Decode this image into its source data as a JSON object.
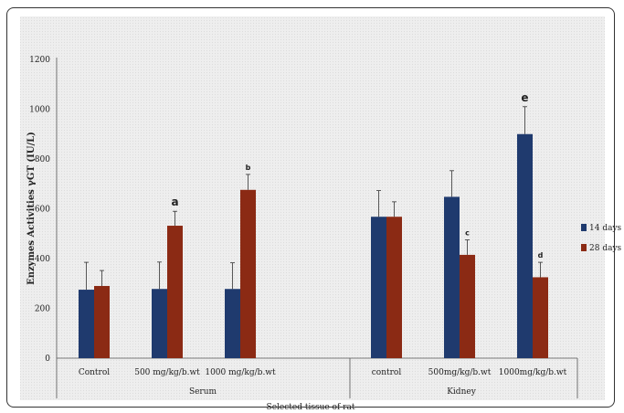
{
  "chart_data": {
    "type": "bar",
    "ylabel": "Enzymes Activities γGT (IU/L)",
    "xlabel": "Selected tissue of rat",
    "ylim": [
      0,
      1200
    ],
    "yticks": [
      0,
      200,
      400,
      600,
      800,
      1000,
      1200
    ],
    "grid": false,
    "legend_position": "right",
    "groups": [
      {
        "name": "Serum",
        "categories": [
          "Control",
          "500 mg/kg/b.wt",
          "1000 mg/kg/b.wt"
        ]
      },
      {
        "name": "Kidney",
        "categories": [
          "control",
          "500mg/kg/b.wt",
          "1000mg/kg/b.wt"
        ]
      }
    ],
    "categories": [
      "Control",
      "500 mg/kg/b.wt",
      "1000 mg/kg/b.wt",
      "control",
      "500mg/kg/b.wt",
      "1000mg/kg/b.wt"
    ],
    "series": [
      {
        "name": "14 days",
        "color": "#1f3a6e",
        "values": [
          275,
          278,
          278,
          568,
          648,
          900
        ],
        "errors": [
          110,
          108,
          105,
          105,
          105,
          110
        ]
      },
      {
        "name": "28 days",
        "color": "#8b2a14",
        "values": [
          290,
          532,
          676,
          568,
          415,
          325
        ],
        "errors": [
          62,
          58,
          62,
          60,
          60,
          60
        ]
      }
    ],
    "annotations": [
      {
        "text": "a",
        "category": 1,
        "series": 1,
        "size": "large"
      },
      {
        "text": "b",
        "category": 2,
        "series": 1,
        "size": "small"
      },
      {
        "text": "c",
        "category": 4,
        "series": 1,
        "size": "small"
      },
      {
        "text": "d",
        "category": 5,
        "series": 1,
        "size": "small"
      },
      {
        "text": "e",
        "category": 5,
        "series": 0,
        "size": "large"
      }
    ]
  }
}
